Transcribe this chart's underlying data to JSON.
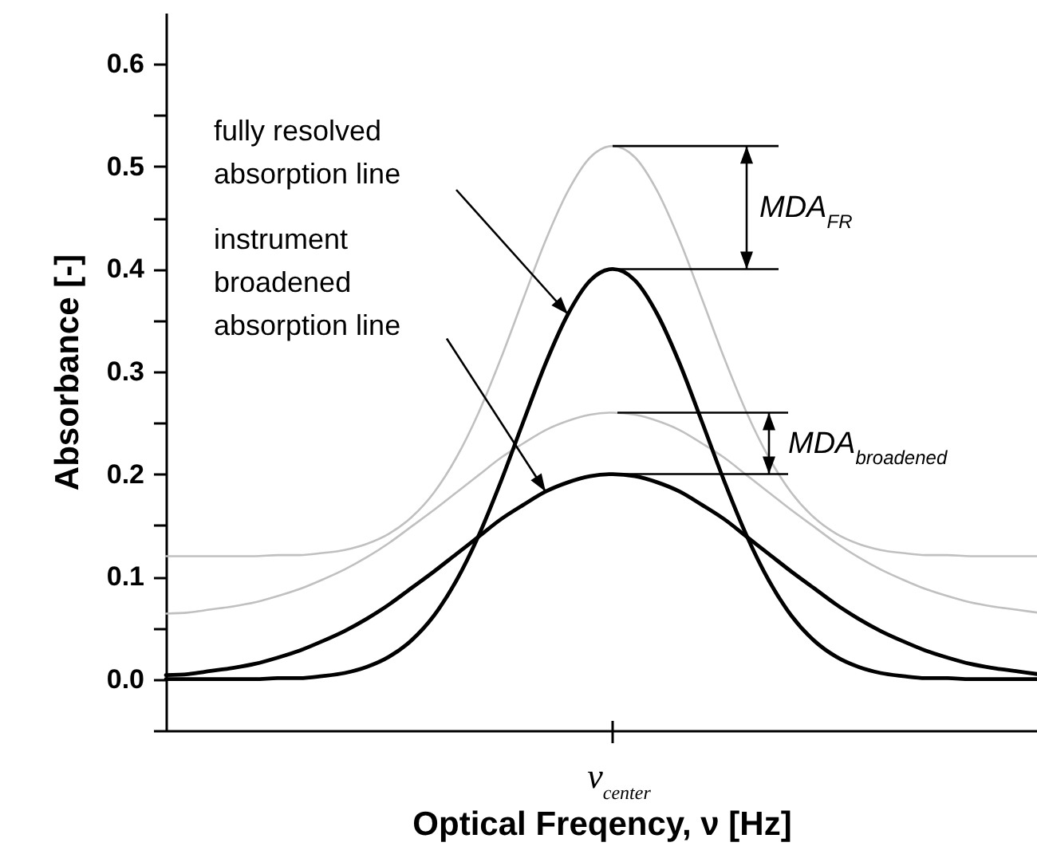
{
  "chart_data": {
    "type": "line",
    "xlabel": "Optical Freqency, ν [Hz]",
    "ylabel": "Absorbance [-]",
    "categories": [
      null,
      null,
      null,
      null,
      null,
      null,
      null,
      null,
      null,
      null,
      null,
      null,
      null,
      null,
      null,
      null,
      null,
      null,
      null,
      null,
      null,
      null,
      null,
      null,
      null,
      null,
      null,
      null,
      null,
      null,
      null,
      null,
      null,
      null,
      null,
      null,
      null,
      null,
      null,
      null
    ],
    "series": [
      {
        "color": "#c0c0c0",
        "values": [
          0.12,
          0.12,
          0.12,
          0.12,
          0.12,
          0.121,
          0.121,
          0.123,
          0.126,
          0.132,
          0.142,
          0.158,
          0.182,
          0.216,
          0.26,
          0.313,
          0.371,
          0.428,
          0.476,
          0.509,
          0.52,
          0.509,
          0.476,
          0.428,
          0.371,
          0.313,
          0.26,
          0.216,
          0.182,
          0.158,
          0.142,
          0.132,
          0.126,
          0.123,
          0.121,
          0.121,
          0.12,
          0.12,
          0.12,
          0.12
        ]
      },
      {
        "color": "#c0c0c0",
        "values": [
          0.064,
          0.065,
          0.068,
          0.071,
          0.075,
          0.081,
          0.088,
          0.097,
          0.107,
          0.119,
          0.133,
          0.149,
          0.165,
          0.182,
          0.199,
          0.216,
          0.23,
          0.243,
          0.252,
          0.258,
          0.26,
          0.258,
          0.252,
          0.243,
          0.23,
          0.216,
          0.199,
          0.182,
          0.165,
          0.149,
          0.133,
          0.119,
          0.107,
          0.097,
          0.088,
          0.081,
          0.075,
          0.071,
          0.068,
          0.065
        ]
      },
      {
        "color": "#000000",
        "values": [
          0,
          0,
          0,
          0,
          0,
          0.001,
          0.001,
          0.003,
          0.006,
          0.012,
          0.022,
          0.038,
          0.062,
          0.096,
          0.14,
          0.193,
          0.251,
          0.308,
          0.356,
          0.389,
          0.4,
          0.389,
          0.356,
          0.308,
          0.251,
          0.193,
          0.14,
          0.096,
          0.062,
          0.038,
          0.022,
          0.012,
          0.006,
          0.003,
          0.001,
          0.001,
          0,
          0,
          0,
          0
        ]
      },
      {
        "color": "#000000",
        "values": [
          0.004,
          0.005,
          0.008,
          0.011,
          0.015,
          0.021,
          0.028,
          0.037,
          0.047,
          0.059,
          0.073,
          0.089,
          0.105,
          0.122,
          0.139,
          0.156,
          0.17,
          0.183,
          0.192,
          0.198,
          0.2,
          0.198,
          0.192,
          0.183,
          0.17,
          0.156,
          0.139,
          0.122,
          0.105,
          0.089,
          0.073,
          0.059,
          0.047,
          0.037,
          0.028,
          0.021,
          0.015,
          0.011,
          0.008,
          0.005
        ]
      }
    ],
    "ylim": [
      -0.05,
      0.65
    ],
    "yticks": [
      {
        "value": -0.05,
        "label": null
      },
      {
        "value": 0,
        "label": "0.0"
      },
      {
        "value": 0.05,
        "label": null
      },
      0.1,
      {
        "value": 0.15,
        "label": null
      },
      0.2,
      {
        "value": 0.25,
        "label": null
      },
      0.3,
      {
        "value": 0.35,
        "label": null
      },
      0.4,
      {
        "value": 0.45,
        "label": null
      },
      0.5,
      {
        "value": 0.55,
        "label": null
      },
      0.6
    ],
    "annotations": [
      "fully resolved\nabsorption line",
      "instrument\nbroadened\nabsorption line",
      "MDA$_{FR}$",
      "MDA$_{broadened}$",
      "ν$_{center}$"
    ]
  }
}
